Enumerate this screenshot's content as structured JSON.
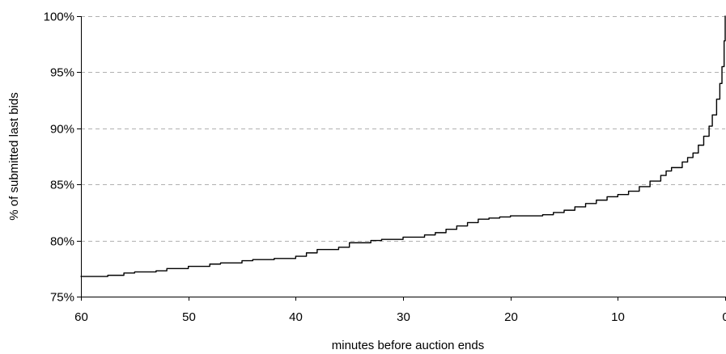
{
  "chart_data": {
    "type": "line",
    "title": "",
    "xlabel": "minutes before auction ends",
    "ylabel": "% of submitted last bids",
    "xlim": [
      60,
      0
    ],
    "ylim": [
      75,
      100
    ],
    "x_reversed": true,
    "x_ticks": [
      60,
      50,
      40,
      30,
      20,
      10,
      0
    ],
    "x_tick_labels": [
      "60",
      "50",
      "40",
      "30",
      "20",
      "10",
      "0"
    ],
    "y_ticks": [
      75,
      80,
      85,
      90,
      95,
      100
    ],
    "y_tick_labels": [
      "75%",
      "80%",
      "85%",
      "90%",
      "95%",
      "100%"
    ],
    "grid": "horizontal dashed",
    "legend": "none",
    "line_color": "#000000",
    "grid_color": "#b0b0b0",
    "series": [
      {
        "x": [
          60,
          58,
          57.5,
          56,
          55,
          53,
          52,
          50,
          48,
          47,
          45,
          44,
          42,
          40,
          39,
          38,
          36,
          35,
          33,
          32,
          30,
          28,
          27,
          26,
          25,
          24,
          23,
          22,
          21,
          20,
          18,
          17,
          16,
          15,
          14,
          13,
          12,
          11,
          10,
          9,
          8,
          7,
          6,
          5.5,
          5,
          4,
          3.5,
          3,
          2.5,
          2,
          1.5,
          1.2,
          0.8,
          0.5,
          0.3,
          0.1,
          0
        ],
        "y": [
          76.8,
          76.8,
          76.9,
          77.1,
          77.2,
          77.3,
          77.5,
          77.7,
          77.9,
          78.0,
          78.2,
          78.3,
          78.4,
          78.6,
          78.9,
          79.2,
          79.4,
          79.8,
          80.0,
          80.1,
          80.3,
          80.5,
          80.7,
          81.0,
          81.3,
          81.6,
          81.9,
          82.0,
          82.1,
          82.2,
          82.2,
          82.3,
          82.5,
          82.7,
          83.0,
          83.3,
          83.6,
          83.9,
          84.1,
          84.4,
          84.8,
          85.3,
          85.8,
          86.2,
          86.5,
          87.0,
          87.4,
          87.8,
          88.5,
          89.3,
          90.2,
          91.2,
          92.6,
          94.0,
          95.5,
          97.8,
          100.0
        ]
      }
    ]
  }
}
